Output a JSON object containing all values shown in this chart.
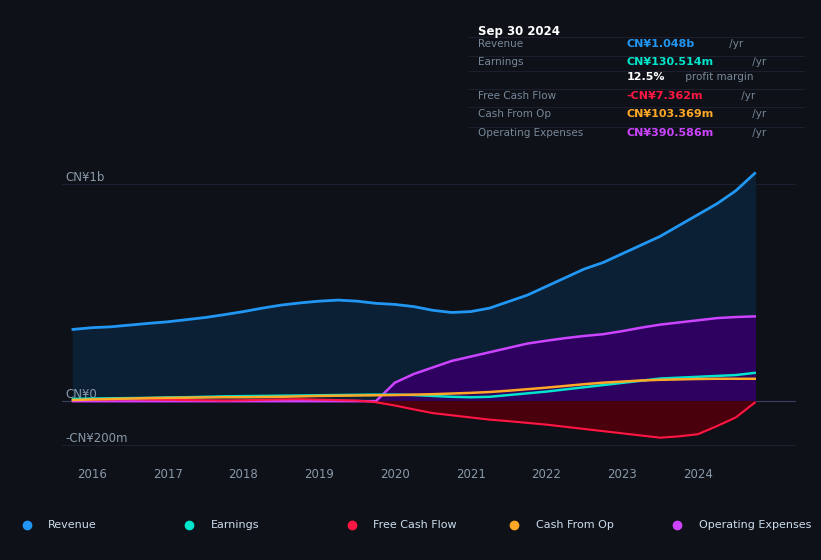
{
  "background_color": "#0e1117",
  "info_box_bg": "#080c10",
  "xlim": [
    2015.6,
    2025.3
  ],
  "ylim": [
    -280,
    1150
  ],
  "xticks": [
    2016,
    2017,
    2018,
    2019,
    2020,
    2021,
    2022,
    2023,
    2024
  ],
  "ylabel_top": "CN¥1b",
  "ylabel_zero": "CN¥0",
  "ylabel_neg": "-CN¥200m",
  "ylabel_top_y": 1000,
  "ylabel_zero_y": 0,
  "ylabel_neg_y": -200,
  "series": {
    "revenue": {
      "color": "#2196f3",
      "fill": "#0d2a45",
      "label": "Revenue"
    },
    "earnings": {
      "color": "#00e5cc",
      "fill": "#00e5cc",
      "label": "Earnings"
    },
    "free_cash_flow": {
      "color": "#ff1744",
      "fill": "#6b0010",
      "label": "Free Cash Flow"
    },
    "cash_from_op": {
      "color": "#ffa726",
      "fill": "#ffa726",
      "label": "Cash From Op"
    },
    "operating_expenses": {
      "color": "#cc44ff",
      "fill": "#3d006b",
      "label": "Operating Expenses"
    }
  },
  "info_box": {
    "date": "Sep 30 2024",
    "rows": [
      {
        "label": "Revenue",
        "value": "CN¥1.048b",
        "unit": " /yr",
        "vcolor": "#2196f3"
      },
      {
        "label": "Earnings",
        "value": "CN¥130.514m",
        "unit": " /yr",
        "vcolor": "#00e5cc"
      },
      {
        "label": "",
        "value": "12.5%",
        "unit": " profit margin",
        "vcolor": "#ffffff"
      },
      {
        "label": "Free Cash Flow",
        "value": "-CN¥7.362m",
        "unit": " /yr",
        "vcolor": "#ff1744"
      },
      {
        "label": "Cash From Op",
        "value": "CN¥103.369m",
        "unit": " /yr",
        "vcolor": "#ffa726"
      },
      {
        "label": "Operating Expenses",
        "value": "CN¥390.586m",
        "unit": " /yr",
        "vcolor": "#cc44ff"
      }
    ]
  },
  "legend": [
    {
      "label": "Revenue",
      "color": "#2196f3"
    },
    {
      "label": "Earnings",
      "color": "#00e5cc"
    },
    {
      "label": "Free Cash Flow",
      "color": "#ff1744"
    },
    {
      "label": "Cash From Op",
      "color": "#ffa726"
    },
    {
      "label": "Operating Expenses",
      "color": "#cc44ff"
    }
  ],
  "revenue_x": [
    2015.75,
    2016.0,
    2016.25,
    2016.5,
    2016.75,
    2017.0,
    2017.25,
    2017.5,
    2017.75,
    2018.0,
    2018.25,
    2018.5,
    2018.75,
    2019.0,
    2019.25,
    2019.5,
    2019.75,
    2020.0,
    2020.25,
    2020.5,
    2020.75,
    2021.0,
    2021.25,
    2021.5,
    2021.75,
    2022.0,
    2022.25,
    2022.5,
    2022.75,
    2023.0,
    2023.25,
    2023.5,
    2023.75,
    2024.0,
    2024.25,
    2024.5,
    2024.75
  ],
  "revenue_y": [
    330,
    338,
    342,
    350,
    358,
    365,
    375,
    385,
    398,
    412,
    428,
    442,
    452,
    460,
    465,
    460,
    450,
    445,
    435,
    418,
    408,
    412,
    428,
    458,
    488,
    528,
    568,
    608,
    638,
    678,
    718,
    758,
    808,
    858,
    908,
    968,
    1048
  ],
  "earnings_x": [
    2015.75,
    2016.0,
    2016.25,
    2016.5,
    2016.75,
    2017.0,
    2017.25,
    2017.5,
    2017.75,
    2018.0,
    2018.25,
    2018.5,
    2018.75,
    2019.0,
    2019.25,
    2019.5,
    2019.75,
    2020.0,
    2020.25,
    2020.5,
    2020.75,
    2021.0,
    2021.25,
    2021.5,
    2021.75,
    2022.0,
    2022.25,
    2022.5,
    2022.75,
    2023.0,
    2023.25,
    2023.5,
    2023.75,
    2024.0,
    2024.25,
    2024.5,
    2024.75
  ],
  "earnings_y": [
    10,
    12,
    13,
    14,
    15,
    17,
    18,
    20,
    22,
    23,
    24,
    25,
    26,
    27,
    28,
    29,
    30,
    30,
    28,
    24,
    20,
    18,
    20,
    28,
    36,
    44,
    54,
    64,
    74,
    84,
    94,
    104,
    108,
    112,
    116,
    120,
    130
  ],
  "fcf_x": [
    2015.75,
    2016.0,
    2016.25,
    2016.5,
    2016.75,
    2017.0,
    2017.25,
    2017.5,
    2017.75,
    2018.0,
    2018.25,
    2018.5,
    2018.75,
    2019.0,
    2019.25,
    2019.5,
    2019.75,
    2020.0,
    2020.25,
    2020.5,
    2020.75,
    2021.0,
    2021.25,
    2021.5,
    2021.75,
    2022.0,
    2022.25,
    2022.5,
    2022.75,
    2023.0,
    2023.25,
    2023.5,
    2023.75,
    2024.0,
    2024.25,
    2024.5,
    2024.75
  ],
  "fcf_y": [
    5,
    6,
    7,
    8,
    7,
    6,
    5,
    4,
    3,
    4,
    6,
    8,
    9,
    7,
    5,
    3,
    -5,
    -20,
    -38,
    -55,
    -65,
    -75,
    -85,
    -92,
    -100,
    -108,
    -118,
    -128,
    -138,
    -148,
    -158,
    -168,
    -162,
    -152,
    -115,
    -75,
    -7
  ],
  "cfop_x": [
    2015.75,
    2016.0,
    2016.25,
    2016.5,
    2016.75,
    2017.0,
    2017.25,
    2017.5,
    2017.75,
    2018.0,
    2018.25,
    2018.5,
    2018.75,
    2019.0,
    2019.25,
    2019.5,
    2019.75,
    2020.0,
    2020.25,
    2020.5,
    2020.75,
    2021.0,
    2021.25,
    2021.5,
    2021.75,
    2022.0,
    2022.25,
    2022.5,
    2022.75,
    2023.0,
    2023.25,
    2023.5,
    2023.75,
    2024.0,
    2024.25,
    2024.5,
    2024.75
  ],
  "cfop_y": [
    5,
    8,
    10,
    12,
    14,
    15,
    16,
    17,
    18,
    18,
    19,
    20,
    22,
    24,
    25,
    26,
    27,
    28,
    30,
    32,
    35,
    38,
    42,
    48,
    55,
    62,
    70,
    78,
    85,
    90,
    95,
    98,
    100,
    102,
    103,
    103,
    103
  ],
  "opex_x": [
    2015.75,
    2016.0,
    2016.25,
    2016.5,
    2016.75,
    2017.0,
    2017.25,
    2017.5,
    2017.75,
    2018.0,
    2018.25,
    2018.5,
    2018.75,
    2019.0,
    2019.25,
    2019.5,
    2019.75,
    2020.0,
    2020.25,
    2020.5,
    2020.75,
    2021.0,
    2021.25,
    2021.5,
    2021.75,
    2022.0,
    2022.25,
    2022.5,
    2022.75,
    2023.0,
    2023.25,
    2023.5,
    2023.75,
    2024.0,
    2024.25,
    2024.5,
    2024.75
  ],
  "opex_y": [
    0,
    0,
    0,
    0,
    0,
    0,
    0,
    0,
    0,
    0,
    0,
    0,
    0,
    0,
    0,
    0,
    0,
    85,
    125,
    155,
    185,
    205,
    225,
    245,
    265,
    278,
    290,
    300,
    308,
    322,
    338,
    352,
    362,
    372,
    382,
    387,
    390
  ]
}
